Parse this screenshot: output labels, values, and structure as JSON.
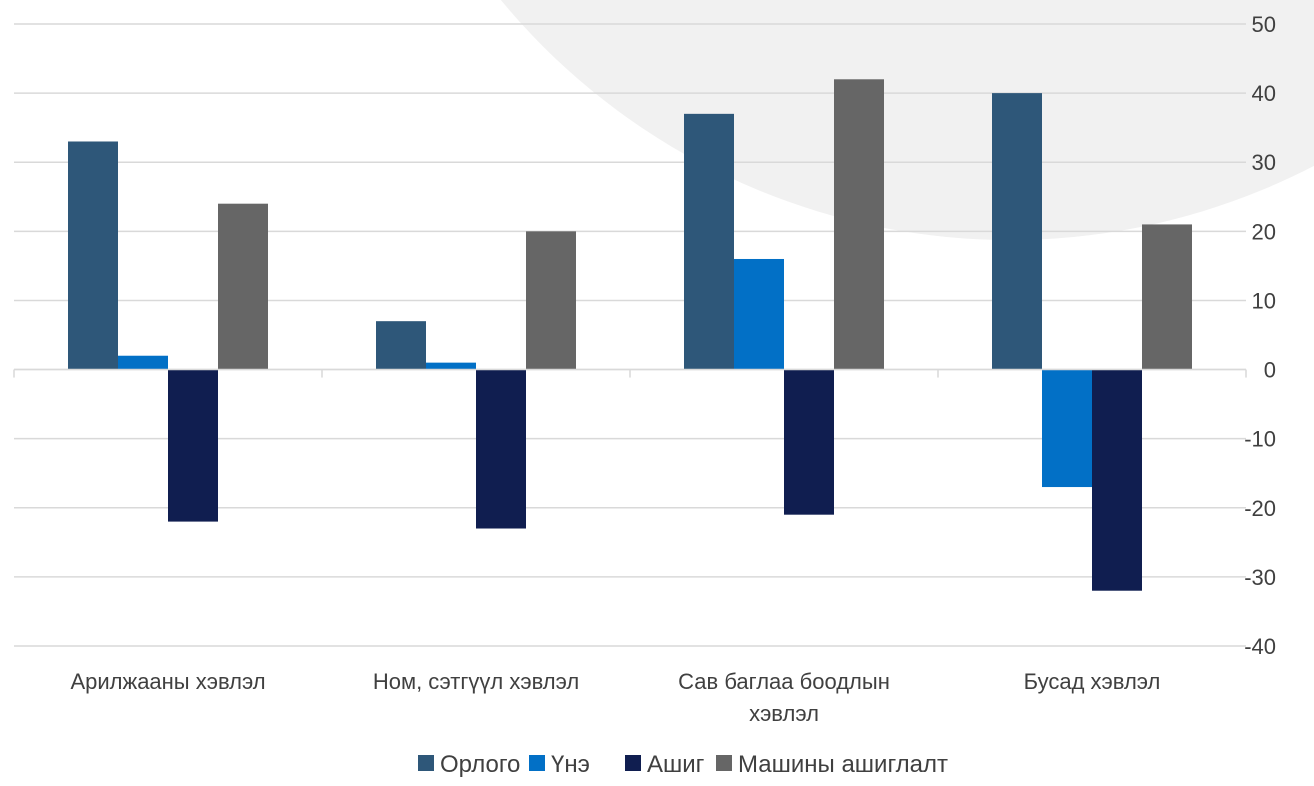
{
  "chart_data": {
    "type": "bar",
    "title": "",
    "xlabel": "",
    "ylabel": "",
    "categories": [
      [
        "Арилжааны хэвлэл"
      ],
      [
        "Ном, сэтгүүл хэвлэл"
      ],
      [
        "Сав баглаа боодлын",
        "хэвлэл"
      ],
      [
        "Бусад хэвлэл"
      ]
    ],
    "series": [
      {
        "name": "Орлого",
        "color": "#2e5779",
        "values": [
          33,
          7,
          37,
          40
        ]
      },
      {
        "name": "Үнэ",
        "color": "#0270c6",
        "values": [
          2,
          1,
          16,
          -17
        ]
      },
      {
        "name": "Ашиг",
        "color": "#101e50",
        "values": [
          -22,
          -23,
          -21,
          -32
        ]
      },
      {
        "name": "Машины ашиглалт",
        "color": "#666666",
        "values": [
          24,
          20,
          42,
          21
        ]
      }
    ],
    "ylim": [
      -40,
      50
    ],
    "yticks": [
      50,
      40,
      30,
      20,
      10,
      0,
      -10,
      -20,
      -30,
      -40
    ],
    "y_axis_position": "right",
    "grid": true,
    "legend": "bottom",
    "background_accent": "#f1f1f1"
  }
}
